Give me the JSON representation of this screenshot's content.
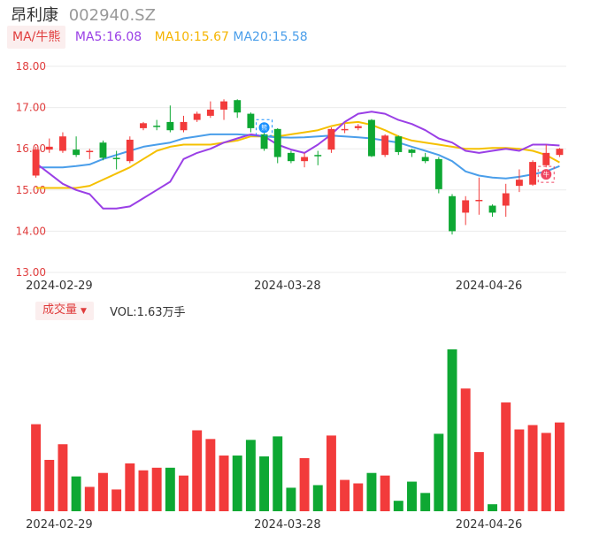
{
  "header": {
    "name": "昂利康",
    "code": "002940.SZ"
  },
  "ma_legend": {
    "tag": "MA/牛熊",
    "ma5": "MA5:16.08",
    "ma10": "MA10:15.67",
    "ma20": "MA20:15.58"
  },
  "volume_legend": {
    "tag": "成交量",
    "vol": "VOL:1.63万手"
  },
  "colors": {
    "up": "#f23b3b",
    "down": "#0ea833",
    "ma5": "#9a3fe6",
    "ma10": "#f5c000",
    "ma20": "#4a9eea",
    "axis_text": "#e03d3d",
    "grid": "#ebebeb"
  },
  "chart_data": [
    {
      "type": "candlestick",
      "y_ticks": [
        "18.00",
        "17.00",
        "16.00",
        "15.00",
        "14.00",
        "13.00"
      ],
      "ylim": [
        13,
        18
      ],
      "x_labels": [
        {
          "label": "2024-02-29",
          "index": 2
        },
        {
          "label": "2024-03-28",
          "index": 19
        },
        {
          "label": "2024-04-26",
          "index": 34
        }
      ],
      "markers": [
        {
          "index": 17,
          "text": "熊",
          "color": "#1890ff"
        },
        {
          "index": 38,
          "text": "牛",
          "color": "#f04864"
        }
      ],
      "candles": [
        {
          "o": 15.35,
          "c": 15.98,
          "h": 16.05,
          "l": 15.3
        },
        {
          "o": 15.98,
          "c": 16.05,
          "h": 16.25,
          "l": 15.9
        },
        {
          "o": 15.95,
          "c": 16.3,
          "h": 16.4,
          "l": 15.9
        },
        {
          "o": 15.98,
          "c": 15.85,
          "h": 16.3,
          "l": 15.8
        },
        {
          "o": 15.92,
          "c": 15.95,
          "h": 16.0,
          "l": 15.75
        },
        {
          "o": 16.15,
          "c": 15.78,
          "h": 16.2,
          "l": 15.72
        },
        {
          "o": 15.78,
          "c": 15.75,
          "h": 15.95,
          "l": 15.5
        },
        {
          "o": 15.7,
          "c": 16.22,
          "h": 16.3,
          "l": 15.65
        },
        {
          "o": 16.5,
          "c": 16.62,
          "h": 16.65,
          "l": 16.45
        },
        {
          "o": 16.56,
          "c": 16.55,
          "h": 16.7,
          "l": 16.45
        },
        {
          "o": 16.65,
          "c": 16.45,
          "h": 17.05,
          "l": 16.4
        },
        {
          "o": 16.45,
          "c": 16.65,
          "h": 16.8,
          "l": 16.4
        },
        {
          "o": 16.7,
          "c": 16.85,
          "h": 16.9,
          "l": 16.65
        },
        {
          "o": 16.8,
          "c": 16.95,
          "h": 17.15,
          "l": 16.75
        },
        {
          "o": 16.95,
          "c": 17.15,
          "h": 17.2,
          "l": 16.7
        },
        {
          "o": 17.18,
          "c": 16.88,
          "h": 17.2,
          "l": 16.75
        },
        {
          "o": 16.85,
          "c": 16.5,
          "h": 16.88,
          "l": 16.4
        },
        {
          "o": 16.35,
          "c": 16.0,
          "h": 16.6,
          "l": 15.95
        },
        {
          "o": 16.48,
          "c": 15.8,
          "h": 16.5,
          "l": 15.65
        },
        {
          "o": 15.9,
          "c": 15.7,
          "h": 15.95,
          "l": 15.65
        },
        {
          "o": 15.7,
          "c": 15.8,
          "h": 15.9,
          "l": 15.55
        },
        {
          "o": 15.85,
          "c": 15.83,
          "h": 15.95,
          "l": 15.6
        },
        {
          "o": 15.98,
          "c": 16.48,
          "h": 16.52,
          "l": 15.9
        },
        {
          "o": 16.47,
          "c": 16.48,
          "h": 16.6,
          "l": 16.38
        },
        {
          "o": 16.5,
          "c": 16.55,
          "h": 16.6,
          "l": 16.45
        },
        {
          "o": 16.7,
          "c": 15.82,
          "h": 16.72,
          "l": 15.8
        },
        {
          "o": 15.85,
          "c": 16.32,
          "h": 16.35,
          "l": 15.8
        },
        {
          "o": 16.3,
          "c": 15.92,
          "h": 16.32,
          "l": 15.85
        },
        {
          "o": 15.98,
          "c": 15.9,
          "h": 16.0,
          "l": 15.8
        },
        {
          "o": 15.8,
          "c": 15.7,
          "h": 15.9,
          "l": 15.65
        },
        {
          "o": 15.75,
          "c": 15.02,
          "h": 15.8,
          "l": 14.92
        },
        {
          "o": 14.85,
          "c": 14.0,
          "h": 14.9,
          "l": 13.92
        },
        {
          "o": 14.45,
          "c": 14.75,
          "h": 14.85,
          "l": 14.15
        },
        {
          "o": 14.75,
          "c": 14.76,
          "h": 15.3,
          "l": 14.4
        },
        {
          "o": 14.62,
          "c": 14.45,
          "h": 14.65,
          "l": 14.35
        },
        {
          "o": 14.62,
          "c": 14.92,
          "h": 15.15,
          "l": 14.35
        },
        {
          "o": 15.1,
          "c": 15.25,
          "h": 15.5,
          "l": 14.95
        },
        {
          "o": 15.13,
          "c": 15.68,
          "h": 15.72,
          "l": 15.1
        },
        {
          "o": 15.6,
          "c": 15.9,
          "h": 16.1,
          "l": 15.55
        },
        {
          "o": 15.85,
          "c": 16.0,
          "h": 16.02,
          "l": 15.8
        }
      ],
      "ma5": [
        15.65,
        15.4,
        15.15,
        15.0,
        14.9,
        14.55,
        14.55,
        14.6,
        14.8,
        15.0,
        15.2,
        15.75,
        15.9,
        16.0,
        16.15,
        16.25,
        16.35,
        16.3,
        16.1,
        15.98,
        15.9,
        16.1,
        16.35,
        16.65,
        16.85,
        16.9,
        16.85,
        16.7,
        16.6,
        16.45,
        16.25,
        16.15,
        15.95,
        15.9,
        15.95,
        16.0,
        15.95,
        16.1,
        16.1,
        16.08
      ],
      "ma10": [
        15.05,
        15.05,
        15.05,
        15.05,
        15.1,
        15.25,
        15.4,
        15.55,
        15.75,
        15.95,
        16.05,
        16.1,
        16.1,
        16.1,
        16.15,
        16.2,
        16.3,
        16.3,
        16.3,
        16.35,
        16.4,
        16.45,
        16.55,
        16.62,
        16.65,
        16.58,
        16.45,
        16.3,
        16.2,
        16.15,
        16.1,
        16.05,
        16.0,
        16.0,
        16.02,
        16.02,
        16.0,
        15.95,
        15.85,
        15.67
      ],
      "ma20": [
        15.55,
        15.55,
        15.55,
        15.58,
        15.62,
        15.75,
        15.85,
        15.95,
        16.05,
        16.1,
        16.15,
        16.25,
        16.3,
        16.35,
        16.35,
        16.35,
        16.33,
        16.3,
        16.28,
        16.27,
        16.28,
        16.3,
        16.32,
        16.3,
        16.28,
        16.25,
        16.2,
        16.15,
        16.05,
        15.95,
        15.85,
        15.7,
        15.45,
        15.35,
        15.3,
        15.28,
        15.32,
        15.38,
        15.45,
        15.58
      ]
    },
    {
      "type": "bar",
      "series": "volume",
      "values": [
        100,
        59,
        77,
        40,
        28,
        44,
        25,
        55,
        47,
        50,
        50,
        41,
        93,
        83,
        64,
        64,
        82,
        63,
        86,
        27,
        61,
        30,
        87,
        36,
        32,
        44,
        41,
        12,
        34,
        21,
        89,
        186,
        141,
        68,
        8,
        125,
        94,
        99,
        90,
        102
      ],
      "up": [
        true,
        true,
        true,
        false,
        true,
        true,
        true,
        true,
        true,
        true,
        false,
        true,
        true,
        true,
        true,
        false,
        false,
        false,
        false,
        false,
        true,
        false,
        true,
        true,
        true,
        false,
        true,
        false,
        false,
        false,
        false,
        false,
        true,
        true,
        false,
        true,
        true,
        true,
        true,
        true
      ],
      "ylim": [
        0,
        186
      ]
    }
  ]
}
